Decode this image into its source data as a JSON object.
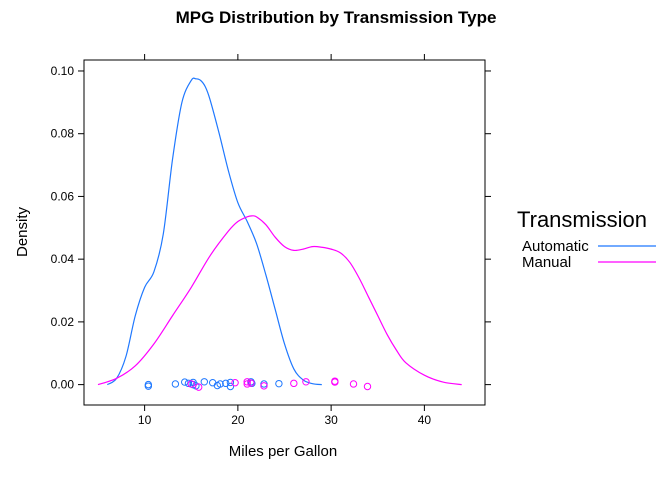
{
  "chart_data": {
    "type": "line",
    "title": "MPG Distribution by Transmission Type",
    "xlabel": "Miles per Gallon",
    "ylabel": "Density",
    "xlim": [
      3.5,
      46.5
    ],
    "ylim": [
      -0.0065,
      0.1035
    ],
    "x_ticks": [
      10,
      20,
      30,
      40
    ],
    "x_tick_labels": [
      "10",
      "20",
      "30",
      "40"
    ],
    "y_ticks": [
      0.0,
      0.02,
      0.04,
      0.06,
      0.08,
      0.1
    ],
    "y_tick_labels": [
      "0.00",
      "0.02",
      "0.04",
      "0.06",
      "0.08",
      "0.10"
    ],
    "grid": false,
    "legend": {
      "title": "Transmission",
      "position": "right",
      "entries": [
        {
          "label": "Automatic",
          "color": "#1f78ff"
        },
        {
          "label": "Manual",
          "color": "#ff00ff"
        }
      ]
    },
    "series": [
      {
        "name": "Automatic",
        "color": "#1f78ff",
        "x": [
          6.0,
          7.0,
          8.0,
          9.0,
          10.0,
          11.0,
          12.0,
          13.0,
          14.0,
          15.0,
          15.5,
          16.0,
          16.5,
          17.0,
          18.0,
          19.0,
          20.0,
          21.0,
          22.0,
          23.0,
          24.0,
          25.0,
          26.0,
          27.0,
          28.0,
          29.0
        ],
        "y": [
          0.0,
          0.002,
          0.009,
          0.022,
          0.031,
          0.036,
          0.048,
          0.072,
          0.09,
          0.097,
          0.0975,
          0.097,
          0.095,
          0.091,
          0.08,
          0.068,
          0.058,
          0.052,
          0.045,
          0.035,
          0.024,
          0.013,
          0.005,
          0.0015,
          0.0003,
          0.0
        ]
      },
      {
        "name": "Manual",
        "color": "#ff00ff",
        "x": [
          5.0,
          7.0,
          9.0,
          11.0,
          13.0,
          15.0,
          17.0,
          19.0,
          20.0,
          21.0,
          21.5,
          22.0,
          23.0,
          24.0,
          25.0,
          26.0,
          27.0,
          28.0,
          29.0,
          30.0,
          31.0,
          32.0,
          33.0,
          34.0,
          35.0,
          36.0,
          37.0,
          38.0,
          40.0,
          42.0,
          44.0
        ],
        "y": [
          0.0,
          0.002,
          0.006,
          0.013,
          0.022,
          0.031,
          0.041,
          0.049,
          0.052,
          0.0535,
          0.0538,
          0.0535,
          0.051,
          0.047,
          0.044,
          0.0428,
          0.0432,
          0.044,
          0.0438,
          0.0432,
          0.042,
          0.039,
          0.034,
          0.028,
          0.022,
          0.016,
          0.011,
          0.007,
          0.003,
          0.0008,
          0.0
        ]
      }
    ],
    "rug": [
      {
        "name": "Automatic",
        "color": "#1f78ff",
        "x": [
          10.4,
          10.4,
          13.3,
          14.3,
          14.7,
          15.2,
          15.2,
          15.5,
          16.4,
          17.3,
          17.8,
          18.1,
          18.7,
          19.2,
          19.2,
          21.4,
          21.5,
          22.8,
          24.4
        ],
        "y": [
          0.0,
          -0.0005,
          0.0002,
          0.0008,
          0.0004,
          0.0,
          0.0007,
          -0.0004,
          0.0009,
          0.0006,
          -0.0003,
          0.0002,
          0.0004,
          -0.0006,
          0.0007,
          0.0009,
          0.0004,
          0.0002,
          0.0003
        ]
      },
      {
        "name": "Manual",
        "color": "#ff00ff",
        "x": [
          15.0,
          15.8,
          19.7,
          21.0,
          21.0,
          21.4,
          22.8,
          26.0,
          27.3,
          30.4,
          30.4,
          32.4,
          33.9
        ],
        "y": [
          0.0002,
          -0.0008,
          0.0006,
          0.0002,
          0.0009,
          0.0005,
          -0.0004,
          0.0004,
          0.0009,
          0.0011,
          0.0008,
          0.0002,
          -0.0006
        ]
      }
    ]
  }
}
